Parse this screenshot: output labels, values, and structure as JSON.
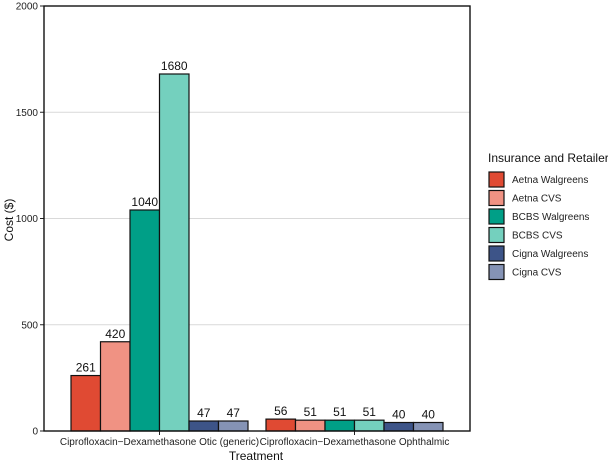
{
  "chart_data": {
    "type": "bar",
    "xlabel": "Treatment",
    "ylabel": "Cost ($)",
    "ylim": [
      0,
      2000
    ],
    "yticks": [
      0,
      500,
      1000,
      1500,
      2000
    ],
    "grid": "horizontal",
    "legend_position": "right",
    "legend_title": "Insurance and Retailer",
    "categories": [
      "Ciprofloxacin−Dexamethasone Otic (generic)",
      "Ciprofloxacin−Dexamethasone Ophthalmic"
    ],
    "series": [
      {
        "name": "Aetna Walgreens",
        "color": "#e04a33",
        "values": [
          261,
          56
        ]
      },
      {
        "name": "Aetna CVS",
        "color": "#f09283",
        "values": [
          420,
          51
        ]
      },
      {
        "name": "BCBS Walgreens",
        "color": "#009f87",
        "values": [
          1040,
          51
        ]
      },
      {
        "name": "BCBS CVS",
        "color": "#74d0be",
        "values": [
          1680,
          51
        ]
      },
      {
        "name": "Cigna Walgreens",
        "color": "#3d5488",
        "values": [
          47,
          40
        ]
      },
      {
        "name": "Cigna CVS",
        "color": "#8593b5",
        "values": [
          47,
          40
        ]
      }
    ]
  }
}
